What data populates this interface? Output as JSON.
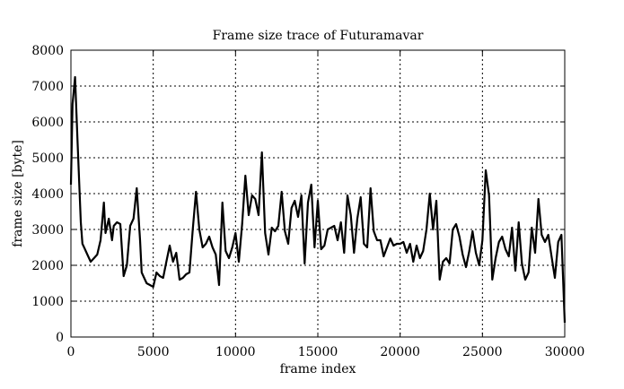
{
  "chart_data": {
    "type": "line",
    "title": "Frame size trace of Futuramavar",
    "xlabel": "frame index",
    "ylabel": "frame size [byte]",
    "xlim": [
      0,
      30000
    ],
    "ylim": [
      0,
      8000
    ],
    "xticks": [
      0,
      5000,
      10000,
      15000,
      20000,
      25000,
      30000
    ],
    "yticks": [
      0,
      1000,
      2000,
      3000,
      4000,
      5000,
      6000,
      7000,
      8000
    ],
    "grid": true,
    "legend": "none",
    "series_color": "#000000",
    "series": [
      {
        "x": [
          0,
          100,
          250,
          400,
          600,
          700,
          800,
          1000,
          1200,
          1400,
          1600,
          1800,
          2000,
          2100,
          2300,
          2500,
          2600,
          2800,
          3000,
          3200,
          3400,
          3600,
          3800,
          4000,
          4200,
          4300,
          4600,
          5000,
          5200,
          5400,
          5600,
          5800,
          6000,
          6200,
          6400,
          6600,
          6800,
          7000,
          7200,
          7400,
          7600,
          7800,
          8000,
          8200,
          8400,
          8600,
          8800,
          9000,
          9200,
          9400,
          9600,
          9800,
          10000,
          10200,
          10400,
          10600,
          10800,
          11000,
          11200,
          11400,
          11600,
          11800,
          12000,
          12200,
          12400,
          12600,
          12800,
          13000,
          13200,
          13400,
          13600,
          13800,
          14000,
          14200,
          14400,
          14600,
          14800,
          15000,
          15200,
          15400,
          15600,
          15800,
          16000,
          16200,
          16400,
          16600,
          16800,
          17000,
          17200,
          17400,
          17600,
          17800,
          18000,
          18200,
          18400,
          18600,
          18800,
          19000,
          19200,
          19400,
          19600,
          19800,
          20000,
          20200,
          20400,
          20600,
          20800,
          21000,
          21200,
          21400,
          21600,
          21800,
          22000,
          22200,
          22400,
          22600,
          22800,
          23000,
          23200,
          23400,
          23600,
          23800,
          24000,
          24200,
          24400,
          24600,
          24800,
          25000,
          25200,
          25400,
          25600,
          25800,
          26000,
          26200,
          26400,
          26600,
          26800,
          27000,
          27200,
          27400,
          27600,
          27800,
          28000,
          28200,
          28400,
          28600,
          28800,
          29000,
          29200,
          29400,
          29600,
          29800,
          30000
        ],
        "values": [
          4250,
          6500,
          7250,
          5500,
          3200,
          2600,
          2500,
          2300,
          2100,
          2200,
          2300,
          2700,
          3750,
          2900,
          3300,
          2700,
          3100,
          3200,
          3150,
          1700,
          2000,
          3100,
          3300,
          4150,
          2700,
          1800,
          1500,
          1400,
          1800,
          1700,
          1650,
          2100,
          2550,
          2100,
          2350,
          1600,
          1650,
          1750,
          1800,
          3000,
          4050,
          3000,
          2500,
          2600,
          2800,
          2500,
          2300,
          1450,
          3750,
          2400,
          2200,
          2500,
          2900,
          2100,
          3150,
          4500,
          3400,
          3950,
          3850,
          3400,
          5150,
          2900,
          2300,
          3050,
          2950,
          3100,
          4050,
          2950,
          2600,
          3600,
          3800,
          3350,
          3950,
          2050,
          3750,
          4250,
          2500,
          3800,
          2450,
          2550,
          3000,
          3050,
          3100,
          2700,
          3200,
          2350,
          3950,
          3400,
          2350,
          3300,
          3900,
          2600,
          2500,
          4150,
          2950,
          2700,
          2700,
          2250,
          2500,
          2750,
          2550,
          2600,
          2600,
          2650,
          2350,
          2600,
          2100,
          2550,
          2200,
          2400,
          3000,
          4000,
          3000,
          3800,
          1600,
          2100,
          2200,
          2050,
          3000,
          3150,
          2800,
          2300,
          1950,
          2400,
          2950,
          2350,
          2000,
          2700,
          4650,
          3950,
          1600,
          2200,
          2650,
          2800,
          2450,
          2250,
          3050,
          1850,
          3200,
          2050,
          1600,
          1800,
          3050,
          2350,
          3850,
          2850,
          2650,
          2850,
          2250,
          1650,
          2650,
          2850,
          400
        ]
      }
    ]
  }
}
